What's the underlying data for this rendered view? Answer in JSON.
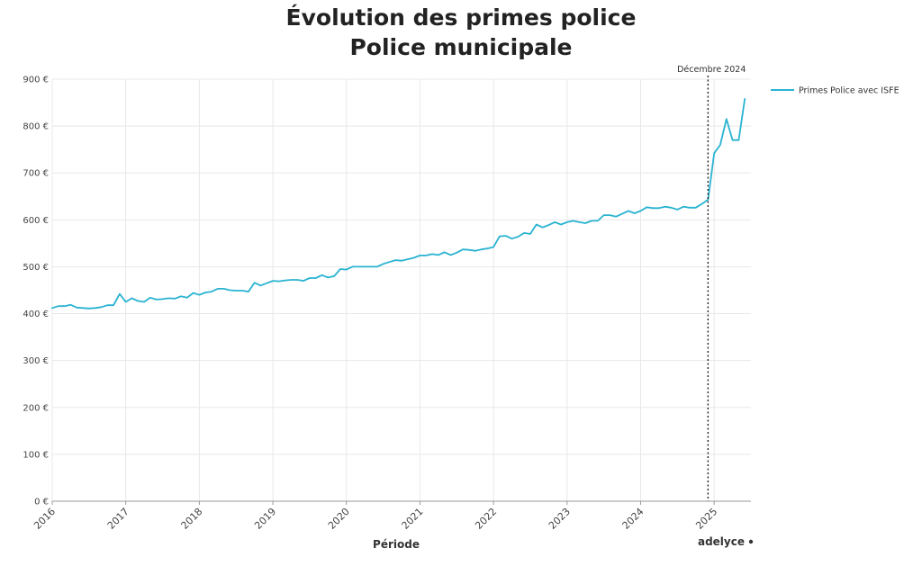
{
  "chart_data": {
    "type": "line",
    "title": [
      "Évolution des primes police",
      "Police municipale"
    ],
    "xlabel": "Période",
    "ylabel": "",
    "ylim": [
      0,
      900
    ],
    "y_ticks": [
      0,
      100,
      200,
      300,
      400,
      500,
      600,
      700,
      800,
      900
    ],
    "y_tick_labels": [
      "0 €",
      "100 €",
      "200 €",
      "300 €",
      "400 €",
      "500 €",
      "600 €",
      "700 €",
      "800 €",
      "900 €"
    ],
    "xlim": [
      2016.0,
      2025.5
    ],
    "x_ticks": [
      2016,
      2017,
      2018,
      2019,
      2020,
      2021,
      2022,
      2023,
      2024,
      2025
    ],
    "x_tick_labels": [
      "2016",
      "2017",
      "2018",
      "2019",
      "2020",
      "2021",
      "2022",
      "2023",
      "2024",
      "2025"
    ],
    "grid": true,
    "legend_position": "top-right",
    "series": [
      {
        "name": "Primes Police avec ISFE",
        "color": "#29b3d1",
        "x": [
          2016.0,
          2016.083,
          2016.167,
          2016.25,
          2016.333,
          2016.417,
          2016.5,
          2016.583,
          2016.667,
          2016.75,
          2016.833,
          2016.917,
          2017.0,
          2017.083,
          2017.167,
          2017.25,
          2017.333,
          2017.417,
          2017.5,
          2017.583,
          2017.667,
          2017.75,
          2017.833,
          2017.917,
          2018.0,
          2018.083,
          2018.167,
          2018.25,
          2018.333,
          2018.417,
          2018.5,
          2018.583,
          2018.667,
          2018.75,
          2018.833,
          2018.917,
          2019.0,
          2019.083,
          2019.167,
          2019.25,
          2019.333,
          2019.417,
          2019.5,
          2019.583,
          2019.667,
          2019.75,
          2019.833,
          2019.917,
          2020.0,
          2020.083,
          2020.167,
          2020.25,
          2020.333,
          2020.417,
          2020.5,
          2020.583,
          2020.667,
          2020.75,
          2020.833,
          2020.917,
          2021.0,
          2021.083,
          2021.167,
          2021.25,
          2021.333,
          2021.417,
          2021.5,
          2021.583,
          2021.667,
          2021.75,
          2021.833,
          2021.917,
          2022.0,
          2022.083,
          2022.167,
          2022.25,
          2022.333,
          2022.417,
          2022.5,
          2022.583,
          2022.667,
          2022.75,
          2022.833,
          2022.917,
          2023.0,
          2023.083,
          2023.167,
          2023.25,
          2023.333,
          2023.417,
          2023.5,
          2023.583,
          2023.667,
          2023.75,
          2023.833,
          2023.917,
          2024.0,
          2024.083,
          2024.167,
          2024.25,
          2024.333,
          2024.417,
          2024.5,
          2024.583,
          2024.667,
          2024.75,
          2024.833,
          2024.917,
          2025.0,
          2025.083,
          2025.167,
          2025.25,
          2025.333,
          2025.417
        ],
        "values": [
          412,
          416,
          416,
          419,
          413,
          412,
          411,
          412,
          414,
          418,
          418,
          442,
          425,
          433,
          427,
          425,
          434,
          430,
          431,
          433,
          432,
          437,
          434,
          444,
          440,
          445,
          447,
          453,
          453,
          450,
          449,
          449,
          447,
          466,
          460,
          465,
          470,
          469,
          471,
          472,
          472,
          470,
          476,
          476,
          482,
          477,
          480,
          495,
          494,
          500,
          500,
          500,
          500,
          500,
          506,
          510,
          514,
          513,
          516,
          519,
          524,
          524,
          527,
          525,
          531,
          525,
          530,
          537,
          536,
          534,
          537,
          539,
          542,
          565,
          566,
          560,
          564,
          572,
          570,
          590,
          584,
          589,
          595,
          590,
          595,
          598,
          595,
          593,
          598,
          598,
          610,
          610,
          607,
          613,
          619,
          614,
          619,
          627,
          625,
          625,
          628,
          626,
          622,
          628,
          626,
          626,
          634,
          643,
          742,
          760,
          815,
          770,
          770,
          858
        ]
      }
    ],
    "annotations": [
      {
        "label": "Décembre 2024",
        "x": 2024.917,
        "style": "dotted-vertical"
      }
    ],
    "brand": "adelyce"
  }
}
